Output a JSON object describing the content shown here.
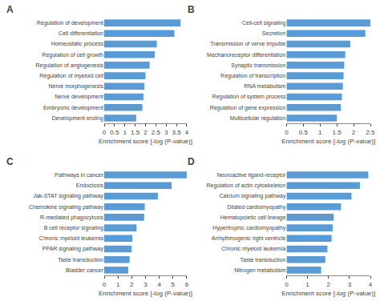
{
  "chart_data": [
    {
      "type": "bar",
      "orientation": "horizontal",
      "title": "A",
      "categories": [
        "Regulation of development",
        "Cell differentiation",
        "Homeostatic process",
        "Regulation of cell growth",
        "Regulation of angiogenesis",
        "Regulation of myeloid cell",
        "Nerve morphogenesis",
        "Nerve development",
        "Embryonic development",
        "Development ending"
      ],
      "values": [
        3.7,
        3.4,
        2.55,
        2.45,
        2.2,
        2.0,
        1.95,
        1.9,
        1.85,
        1.55
      ],
      "color": "#5b9bd5",
      "xlabel": "Enrichment score [-log (P-value)]",
      "xlim": [
        0,
        4
      ],
      "xticks": [
        0,
        0.5,
        1,
        1.5,
        2,
        2.5,
        3,
        3.5,
        4
      ],
      "grid": false
    },
    {
      "type": "bar",
      "orientation": "horizontal",
      "title": "B",
      "categories": [
        "Cell-cell signaling",
        "Secretion",
        "Transmission of verve impulse",
        "Mechanoreceptor differentiation",
        "Synaptic transmission",
        "Regulation of transcription",
        "RNA metabolism",
        "Regulation of system process",
        "Regulation of gene expression",
        "Multicellular regulation"
      ],
      "values": [
        2.5,
        2.35,
        1.9,
        1.75,
        1.72,
        1.7,
        1.68,
        1.65,
        1.62,
        1.5
      ],
      "color": "#5b9bd5",
      "xlabel": "Enrichment score [-log (P-value)]",
      "xlim": [
        0,
        2.5
      ],
      "xticks": [
        0,
        0.5,
        1,
        1.5,
        2,
        2.5
      ],
      "grid": false
    },
    {
      "type": "bar",
      "orientation": "horizontal",
      "title": "C",
      "categories": [
        "Pathways in cancer",
        "Endoctosis",
        "Jak-STAT signaling pathway",
        "Chemokine signaling pathway",
        "R-mediated phagocytosis",
        "B cell receptor signaling",
        "Chronic myeloid leukemia",
        "PPAR signaling pathway",
        "Taste transduction",
        "Bladder cancer"
      ],
      "values": [
        6.0,
        4.9,
        3.9,
        2.95,
        2.9,
        2.35,
        2.05,
        2.0,
        1.85,
        1.75
      ],
      "color": "#5b9bd5",
      "xlabel": "Enrichment score [-log (P-value)]",
      "xlim": [
        0,
        6
      ],
      "xticks": [
        0,
        1,
        2,
        3,
        4,
        5,
        6
      ],
      "grid": false
    },
    {
      "type": "bar",
      "orientation": "horizontal",
      "title": "D",
      "categories": [
        "Neuroactive ligand-receptor",
        "Regulation of actin cytoskeleton",
        "Calcium signaling pathway",
        "Dilated cardiomyopathy",
        "Hematopoietic cell lineage",
        "Hypertrophic cardiomyopathy",
        "Arrhythmogenic right ventricle",
        "Chronic myeloid leukemia",
        "Taste transduction",
        "Nitrogen metabolism"
      ],
      "values": [
        3.9,
        3.5,
        3.1,
        2.6,
        2.25,
        2.2,
        2.15,
        1.95,
        1.85,
        1.65
      ],
      "color": "#5b9bd5",
      "xlabel": "Enrichment score [-log (P-value)]",
      "xlim": [
        0,
        4
      ],
      "xticks": [
        0,
        1,
        2,
        3,
        4
      ],
      "grid": false
    }
  ]
}
